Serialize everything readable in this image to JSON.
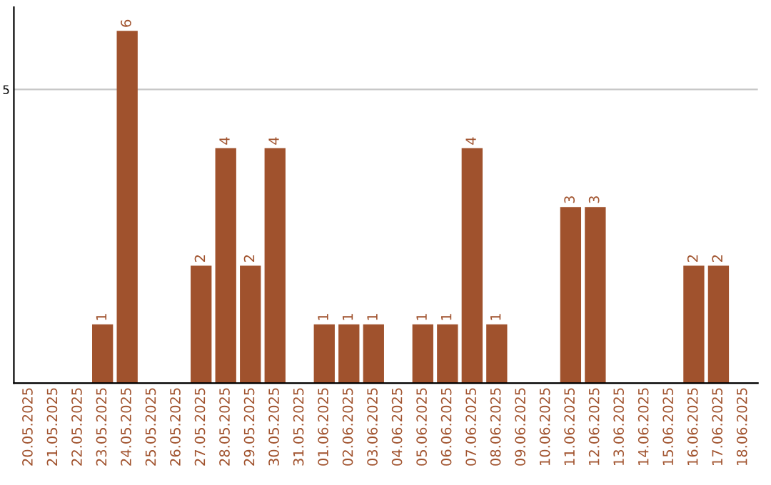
{
  "chart_data": {
    "type": "bar",
    "categories": [
      "20.05.2025",
      "21.05.2025",
      "22.05.2025",
      "23.05.2025",
      "24.05.2025",
      "25.05.2025",
      "26.05.2025",
      "27.05.2025",
      "28.05.2025",
      "29.05.2025",
      "30.05.2025",
      "31.05.2025",
      "01.06.2025",
      "02.06.2025",
      "03.06.2025",
      "04.06.2025",
      "05.06.2025",
      "06.06.2025",
      "07.06.2025",
      "08.06.2025",
      "09.06.2025",
      "10.06.2025",
      "11.06.2025",
      "12.06.2025",
      "13.06.2025",
      "14.06.2025",
      "15.06.2025",
      "16.06.2025",
      "17.06.2025",
      "18.06.2025"
    ],
    "values": [
      0,
      0,
      0,
      1,
      6,
      0,
      0,
      2,
      4,
      2,
      4,
      0,
      1,
      1,
      1,
      0,
      1,
      1,
      4,
      1,
      0,
      0,
      3,
      3,
      0,
      0,
      0,
      2,
      2,
      0
    ],
    "value_labels": [
      null,
      null,
      null,
      "1",
      "6",
      null,
      null,
      "2",
      "4",
      "2",
      "4",
      null,
      "1",
      "1",
      "1",
      null,
      "1",
      "1",
      "4",
      "1",
      null,
      null,
      "3",
      "3",
      null,
      null,
      null,
      "2",
      "2",
      null
    ],
    "color": "#a0522d",
    "ylim": [
      0,
      6.4
    ],
    "yticks": [
      5
    ],
    "grid": "y",
    "legend": false
  }
}
